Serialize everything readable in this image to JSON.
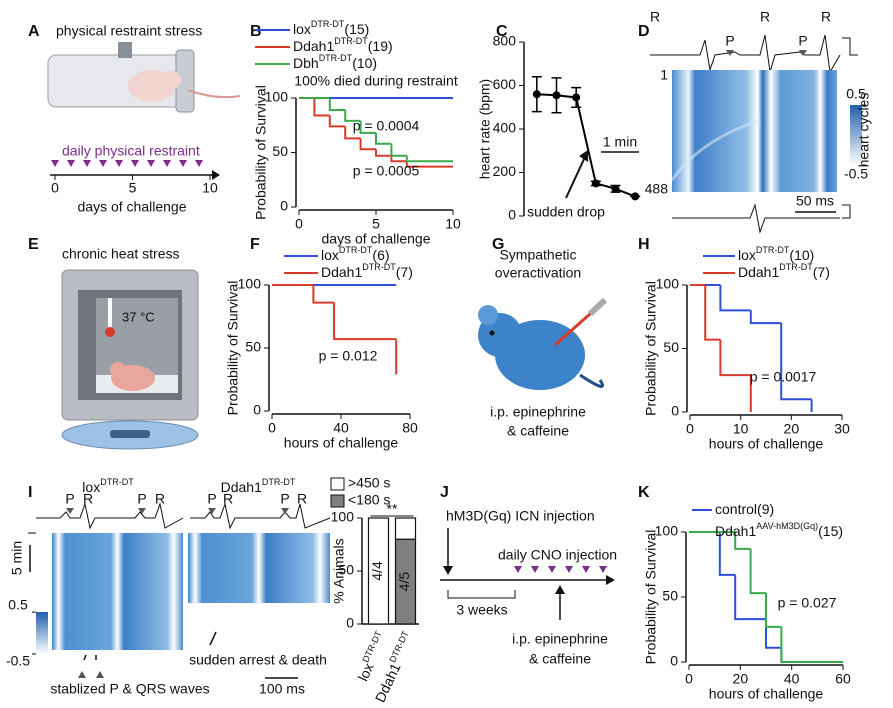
{
  "panel_labels": [
    "A",
    "B",
    "C",
    "D",
    "E",
    "F",
    "G",
    "H",
    "I",
    "J",
    "K"
  ],
  "chart_data": [
    {
      "type": "survival",
      "ylabel": "Probability of Survival",
      "xlabel": "days of challenge",
      "xlim": [
        0,
        10
      ],
      "xticks": [
        0,
        5,
        10
      ],
      "ylim": [
        0,
        100
      ],
      "yticks": [
        0,
        50,
        100
      ],
      "annotations": [
        "100% died during restraint",
        "p = 0.0004",
        "p = 0.0005"
      ],
      "series": [
        {
          "name": "lox",
          "name_sup": "DTR-DT",
          "n": "(15)",
          "color": "#2f4fd8",
          "x": [
            0
          ],
          "values": [
            100
          ],
          "x_end": 10
        },
        {
          "name": "Ddah1",
          "name_sup": "DTR-DT",
          "n": "(19)",
          "color": "#d93a2b",
          "x": [
            0,
            1,
            2,
            3,
            4,
            5,
            6,
            7
          ],
          "values": [
            100,
            84,
            74,
            63,
            53,
            47,
            42,
            37
          ],
          "x_end": 10
        },
        {
          "name": "Dbh",
          "name_sup": "DTR-DT",
          "n": "(10)",
          "color": "#3aaa4c",
          "x": [
            0,
            2,
            3,
            4,
            5,
            6,
            7
          ],
          "values": [
            100,
            89,
            79,
            68,
            58,
            47,
            42
          ],
          "x_end": 10
        }
      ]
    },
    {
      "type": "line",
      "ylabel": "heart rate (bpm)",
      "ylim": [
        0,
        800
      ],
      "yticks": [
        0,
        200,
        400,
        600,
        800
      ],
      "categories": [
        null,
        null,
        null,
        null,
        null,
        null
      ],
      "values": [
        560,
        555,
        545,
        150,
        125,
        90
      ],
      "errors": [
        80,
        80,
        45,
        10,
        15,
        0
      ],
      "color": "#000000",
      "annotations": [
        "sudden drop",
        "1 min"
      ]
    },
    {
      "type": "survival",
      "ylabel": "Probability of Survival",
      "xlabel": "hours of challenge",
      "xlim": [
        0,
        80
      ],
      "xticks": [
        0,
        40,
        80
      ],
      "ylim": [
        0,
        100
      ],
      "yticks": [
        0,
        50,
        100
      ],
      "annotations": [
        "p = 0.012"
      ],
      "series": [
        {
          "name": "lox",
          "name_sup": "DTR-DT",
          "n": "(6)",
          "color": "#2f4fd8",
          "x": [
            0
          ],
          "values": [
            100
          ],
          "x_end": 72
        },
        {
          "name": "Ddah1",
          "name_sup": "DTR-DT",
          "n": "(7)",
          "color": "#d93a2b",
          "x": [
            0,
            24,
            36,
            72
          ],
          "values": [
            100,
            86,
            57,
            29
          ],
          "x_end": 72
        }
      ]
    },
    {
      "type": "survival",
      "ylabel": "Probability of Survival",
      "xlabel": "hours of challenge",
      "xlim": [
        0,
        30
      ],
      "xticks": [
        0,
        10,
        20,
        30
      ],
      "ylim": [
        0,
        100
      ],
      "yticks": [
        0,
        50,
        100
      ],
      "annotations": [
        "p = 0.0017"
      ],
      "series": [
        {
          "name": "lox",
          "name_sup": "DTR-DT",
          "n": "(10)",
          "color": "#2f4fd8",
          "x": [
            0,
            6,
            12,
            18,
            24
          ],
          "values": [
            100,
            80,
            70,
            10,
            0
          ],
          "x_end": 24
        },
        {
          "name": "Ddah1",
          "name_sup": "DTR-DT",
          "n": "(7)",
          "color": "#d93a2b",
          "x": [
            0,
            3,
            6,
            12
          ],
          "values": [
            100,
            57,
            29,
            0
          ],
          "x_end": 12
        }
      ]
    },
    {
      "type": "bar",
      "stacked": true,
      "ylabel": "% Animals",
      "ylim": [
        0,
        100
      ],
      "yticks": [
        0,
        50,
        100
      ],
      "categories": [
        {
          "name": "lox",
          "name_sup": "DTR-DT"
        },
        {
          "name": "Ddah1",
          "name_sup": "DTR-DT"
        }
      ],
      "series": [
        {
          "name": ">450 s",
          "color": "#ffffff",
          "values": [
            100,
            20
          ]
        },
        {
          "name": "<180 s",
          "color": "#808080",
          "values": [
            0,
            80
          ]
        }
      ],
      "bar_labels": [
        "4/4",
        "4/5"
      ],
      "annotations": [
        "**"
      ]
    },
    {
      "type": "survival",
      "ylabel": "Probability of Survival",
      "xlabel": "hours of challenge",
      "xlim": [
        0,
        60
      ],
      "xticks": [
        0,
        20,
        40,
        60
      ],
      "ylim": [
        0,
        100
      ],
      "yticks": [
        0,
        50,
        100
      ],
      "annotations": [
        "p = 0.027"
      ],
      "series": [
        {
          "name": "control",
          "n": "(9)",
          "color": "#2f4fd8",
          "x": [
            0,
            12,
            18,
            30,
            36
          ],
          "values": [
            100,
            67,
            33,
            11,
            0
          ],
          "x_end": 36
        },
        {
          "name": "Ddah1",
          "name_sup": "AAV-hM3D(Gq)",
          "n": "(15)",
          "color": "#3aaa4c",
          "x": [
            0,
            18,
            24,
            30,
            36
          ],
          "values": [
            100,
            87,
            53,
            27,
            0
          ],
          "x_end": 60
        }
      ]
    }
  ],
  "illustrations": {
    "A": {
      "title": "physical restraint stress",
      "timeline_label": "daily physical restraint",
      "xlabel": "days of challenge",
      "xlim": [
        0,
        10
      ],
      "xticks": [
        0,
        5,
        10
      ]
    },
    "D": {
      "peaks": [
        "R",
        "P",
        "R",
        "P",
        "R"
      ],
      "ylabel": "heart cycles",
      "rows": [
        1,
        488
      ],
      "colorbar_lim": [
        -0.5,
        0.5
      ],
      "colorbar_ticks": [
        0.5,
        -0.5
      ],
      "scale": "50 ms"
    },
    "E": {
      "title": "chronic heat stress",
      "temperature": "37 °C"
    },
    "G": {
      "title": [
        "Sympathetic",
        "overactivation"
      ],
      "caption": [
        "i.p. epinephrine",
        "& caffeine"
      ]
    },
    "I": {
      "groups": [
        {
          "name": "lox",
          "name_sup": "DTR-DT"
        },
        {
          "name": "Ddah1",
          "name_sup": "DTR-DT"
        }
      ],
      "peaks": [
        "P",
        "R",
        "P",
        "R",
        "P",
        "R",
        "P",
        "R"
      ],
      "scale_y": "5 min",
      "colorbar_lim": [
        -0.5,
        0.5
      ],
      "colorbar_ticks": [
        0.5,
        -0.5
      ],
      "notes": [
        "stablized P & QRS waves",
        "sudden arrest & death"
      ],
      "scale_x": "100 ms"
    },
    "J": {
      "steps": [
        "hM3D(Gq) ICN injection",
        "daily CNO injection",
        "3 weeks"
      ],
      "caption": [
        "i.p. epinephrine",
        "& caffeine"
      ]
    }
  }
}
